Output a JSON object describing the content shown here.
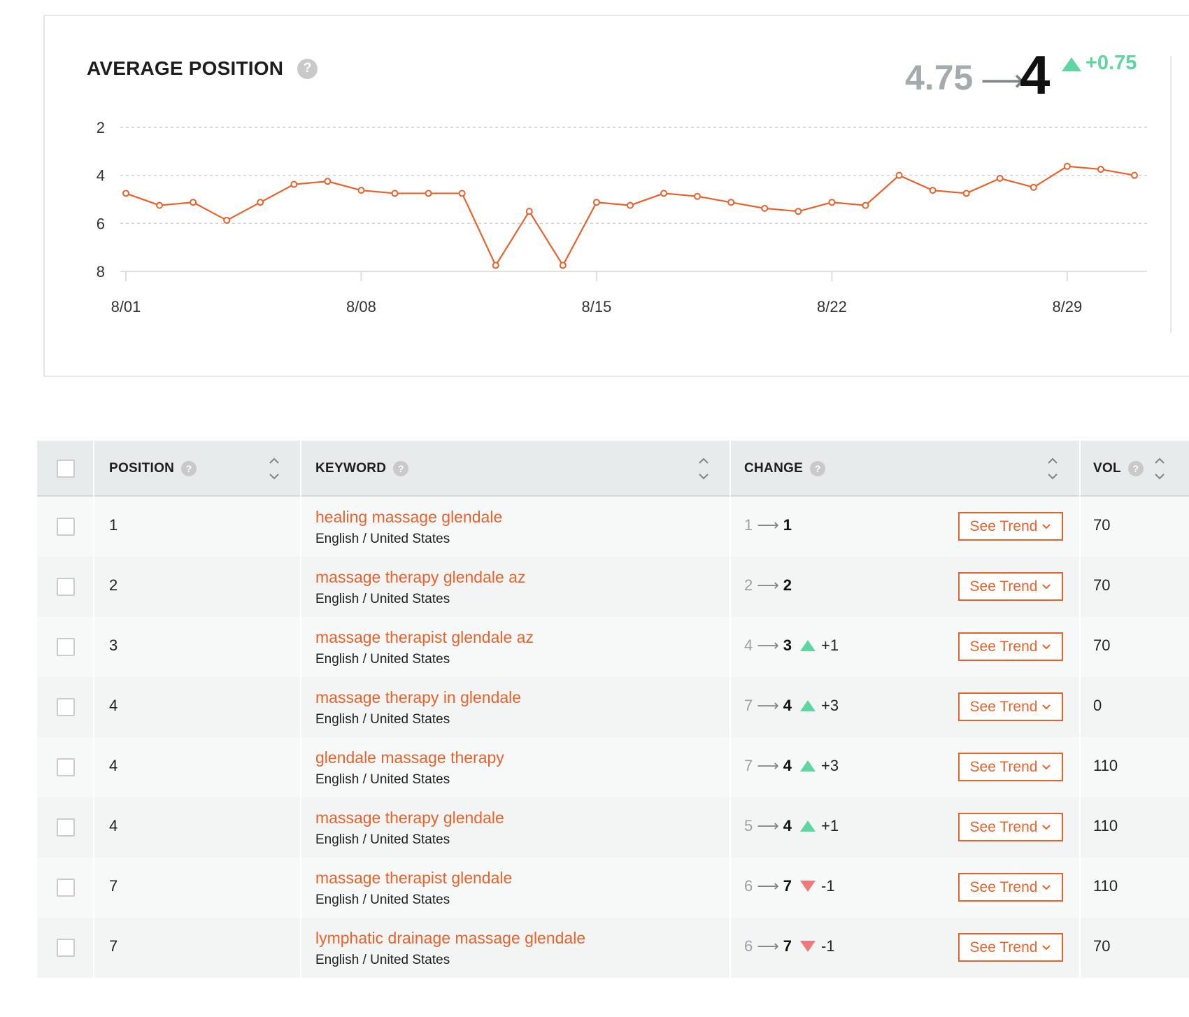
{
  "summary": {
    "title": "AVERAGE POSITION",
    "help": "?",
    "from": "4.75",
    "arrow": "⟶",
    "to": "4",
    "delta": "+0.75",
    "trend_direction": "up",
    "accent_up": "#5dd6a2",
    "accent_down": "#f07a7a",
    "line_color": "#e8622c"
  },
  "chart_data": {
    "type": "line",
    "title": "AVERAGE POSITION",
    "x": [
      "8/01",
      "8/02",
      "8/03",
      "8/04",
      "8/05",
      "8/06",
      "8/07",
      "8/08",
      "8/09",
      "8/10",
      "8/11",
      "8/12",
      "8/13",
      "8/14",
      "8/15",
      "8/16",
      "8/17",
      "8/18",
      "8/19",
      "8/20",
      "8/21",
      "8/22",
      "8/23",
      "8/24",
      "8/25",
      "8/26",
      "8/27",
      "8/28",
      "8/29",
      "8/30",
      "8/31"
    ],
    "series": [
      {
        "values": [
          4.75,
          5.25,
          5.125,
          5.875,
          5.125,
          4.375,
          4.25,
          4.625,
          4.75,
          4.75,
          4.75,
          7.75,
          5.5,
          7.75,
          5.125,
          5.25,
          4.75,
          4.875,
          5.125,
          5.375,
          5.5,
          5.125,
          5.25,
          4.0,
          4.625,
          4.75,
          4.125,
          4.5,
          3.625,
          3.75,
          4.0
        ]
      }
    ],
    "x_tick_labels": [
      "8/01",
      "8/08",
      "8/15",
      "8/22",
      "8/29"
    ],
    "y_tick_labels": [
      "2",
      "4",
      "6",
      "8"
    ],
    "ylim": [
      2,
      8
    ],
    "y_inverted": true,
    "grid": "horizontal-dashed"
  },
  "table": {
    "headers": {
      "position": "POSITION",
      "keyword": "KEYWORD",
      "change": "CHANGE",
      "vol": "VOL"
    },
    "button_label": "See Trend",
    "rows": [
      {
        "position": "1",
        "keyword": "healing massage glendale",
        "locale": "English / United States",
        "from": "1",
        "to": "1",
        "delta": "",
        "dir": "none",
        "vol": "70"
      },
      {
        "position": "2",
        "keyword": "massage therapy glendale az",
        "locale": "English / United States",
        "from": "2",
        "to": "2",
        "delta": "",
        "dir": "none",
        "vol": "70"
      },
      {
        "position": "3",
        "keyword": "massage therapist glendale az",
        "locale": "English / United States",
        "from": "4",
        "to": "3",
        "delta": "+1",
        "dir": "up",
        "vol": "70"
      },
      {
        "position": "4",
        "keyword": "massage therapy in glendale",
        "locale": "English / United States",
        "from": "7",
        "to": "4",
        "delta": "+3",
        "dir": "up",
        "vol": "0"
      },
      {
        "position": "4",
        "keyword": "glendale massage therapy",
        "locale": "English / United States",
        "from": "7",
        "to": "4",
        "delta": "+3",
        "dir": "up",
        "vol": "110"
      },
      {
        "position": "4",
        "keyword": "massage therapy glendale",
        "locale": "English / United States",
        "from": "5",
        "to": "4",
        "delta": "+1",
        "dir": "up",
        "vol": "110"
      },
      {
        "position": "7",
        "keyword": "massage therapist glendale",
        "locale": "English / United States",
        "from": "6",
        "to": "7",
        "delta": "-1",
        "dir": "down",
        "vol": "110"
      },
      {
        "position": "7",
        "keyword": "lymphatic drainage massage glendale",
        "locale": "English / United States",
        "from": "6",
        "to": "7",
        "delta": "-1",
        "dir": "down",
        "vol": "70"
      }
    ]
  }
}
